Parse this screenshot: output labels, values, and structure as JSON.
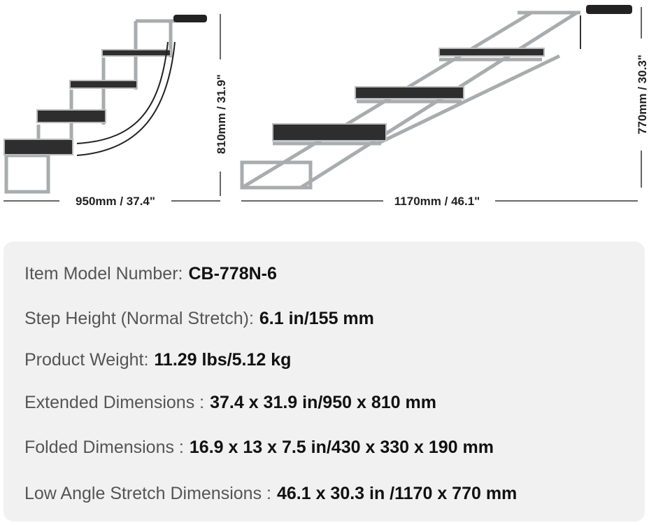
{
  "dimensions": {
    "extended_width": "950mm / 37.4\"",
    "extended_height": "810mm / 31.9\"",
    "stretch_width": "1170mm / 46.1\"",
    "stretch_height": "770mm / 30.3\""
  },
  "specs": [
    {
      "label": "Item Model Number:",
      "value": "CB-778N-6"
    },
    {
      "label": "Step Height (Normal Stretch):",
      "value": "6.1 in/155 mm"
    },
    {
      "label": "Product Weight:",
      "value": "11.29 lbs/5.12 kg"
    },
    {
      "label": "Extended Dimensions :",
      "value": "37.4 x 31.9 in/950 x 810 mm"
    },
    {
      "label": "Folded Dimensions :",
      "value": "16.9 x 13 x 7.5 in/430 x 330 x 190 mm"
    },
    {
      "label": "Low Angle Stretch Dimensions :",
      "value": "46.1 x 30.3 in /1170 x 770 mm"
    }
  ]
}
